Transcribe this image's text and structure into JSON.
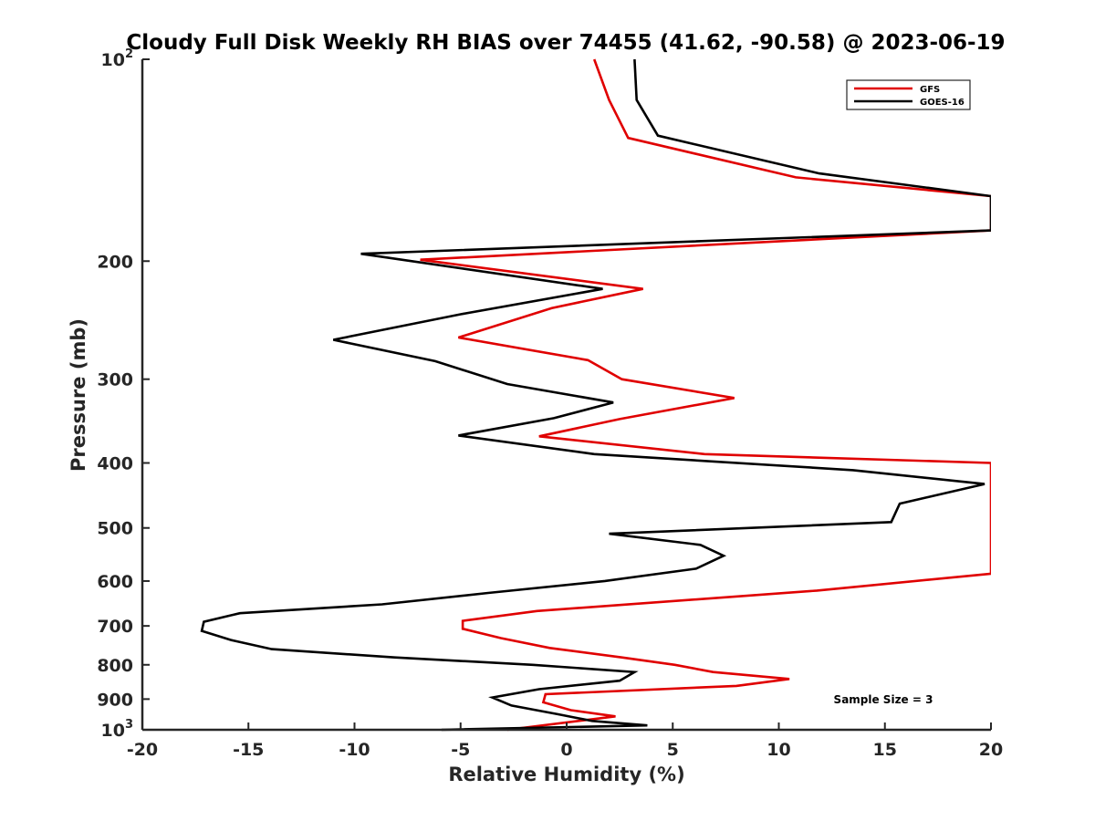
{
  "chart_data": {
    "type": "line",
    "title": "Cloudy Full Disk Weekly RH BIAS over 74455 (41.62, -90.58) @ 2023-06-19",
    "xlabel": "Relative Humidity (%)",
    "ylabel": "Pressure (mb)",
    "xlim": [
      -20,
      20
    ],
    "ylim": [
      100,
      1000
    ],
    "y_scale": "log",
    "y_reversed": true,
    "xticks": [
      -20,
      -15,
      -10,
      -5,
      0,
      5,
      10,
      15,
      20
    ],
    "yticks": [
      {
        "value": 100,
        "base": "10",
        "exp": "2"
      },
      {
        "value": 200,
        "label": "200"
      },
      {
        "value": 300,
        "label": "300"
      },
      {
        "value": 400,
        "label": "400"
      },
      {
        "value": 500,
        "label": "500"
      },
      {
        "value": 600,
        "label": "600"
      },
      {
        "value": 700,
        "label": "700"
      },
      {
        "value": 800,
        "label": "800"
      },
      {
        "value": 900,
        "label": "900"
      },
      {
        "value": 1000,
        "base": "10",
        "exp": "3"
      }
    ],
    "legend": {
      "placement": "top-right"
    },
    "annotation": "Sample Size = 3",
    "series": [
      {
        "name": "GFS",
        "color": "#e00000",
        "points": [
          [
            1.3,
            100
          ],
          [
            2.0,
            115
          ],
          [
            2.9,
            131
          ],
          [
            10.8,
            150
          ],
          [
            20,
            160
          ],
          [
            20,
            180
          ],
          [
            -6.9,
            199
          ],
          [
            3.6,
            220
          ],
          [
            -0.7,
            235
          ],
          [
            -5.1,
            260
          ],
          [
            1.0,
            281
          ],
          [
            2.6,
            300
          ],
          [
            7.9,
            320
          ],
          [
            2.5,
            344
          ],
          [
            -1.3,
            365
          ],
          [
            6.5,
            388
          ],
          [
            20,
            400
          ],
          [
            20,
            585
          ],
          [
            11.8,
            620
          ],
          [
            -1.4,
            665
          ],
          [
            -4.9,
            688
          ],
          [
            -4.9,
            707
          ],
          [
            -3.1,
            730
          ],
          [
            -0.8,
            755
          ],
          [
            2.6,
            780
          ],
          [
            5.1,
            800
          ],
          [
            6.9,
            820
          ],
          [
            10.5,
            840
          ],
          [
            8.0,
            860
          ],
          [
            -1.0,
            885
          ],
          [
            -1.1,
            910
          ],
          [
            0.2,
            935
          ],
          [
            2.3,
            955
          ],
          [
            -2.8,
            1000
          ]
        ]
      },
      {
        "name": "GOES-16",
        "color": "#000000",
        "points": [
          [
            3.2,
            100
          ],
          [
            3.3,
            115
          ],
          [
            4.3,
            130
          ],
          [
            11.9,
            148
          ],
          [
            20,
            160
          ],
          [
            20,
            180
          ],
          [
            -9.7,
            195
          ],
          [
            1.7,
            220
          ],
          [
            -5.0,
            240
          ],
          [
            -11.0,
            262
          ],
          [
            -6.2,
            282
          ],
          [
            -2.8,
            305
          ],
          [
            2.2,
            325
          ],
          [
            -0.6,
            343
          ],
          [
            -5.1,
            364
          ],
          [
            1.3,
            388
          ],
          [
            13.5,
            410
          ],
          [
            19.7,
            430
          ],
          [
            15.7,
            460
          ],
          [
            15.3,
            490
          ],
          [
            2.0,
            510
          ],
          [
            6.3,
            530
          ],
          [
            7.4,
            550
          ],
          [
            6.1,
            575
          ],
          [
            1.8,
            600
          ],
          [
            -3.7,
            625
          ],
          [
            -8.7,
            650
          ],
          [
            -15.4,
            670
          ],
          [
            -17.1,
            690
          ],
          [
            -17.2,
            712
          ],
          [
            -15.8,
            735
          ],
          [
            -13.9,
            758
          ],
          [
            -8.1,
            780
          ],
          [
            -1.6,
            800
          ],
          [
            3.2,
            820
          ],
          [
            2.5,
            845
          ],
          [
            -1.3,
            870
          ],
          [
            -3.5,
            895
          ],
          [
            -2.6,
            920
          ],
          [
            -0.4,
            948
          ],
          [
            1.2,
            970
          ],
          [
            3.8,
            985
          ],
          [
            -5.9,
            1000
          ]
        ]
      }
    ]
  }
}
